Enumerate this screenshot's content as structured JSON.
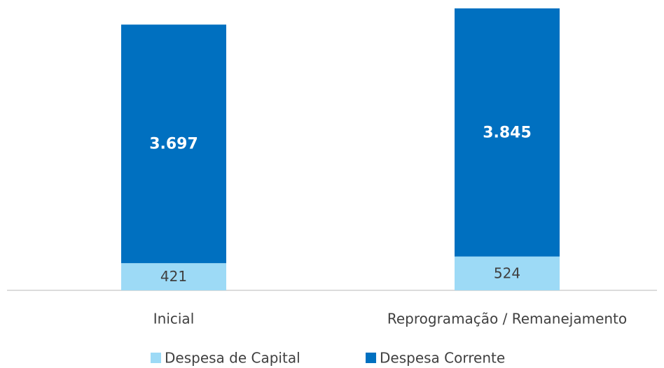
{
  "chart_data": {
    "type": "stacked_bar",
    "categories": [
      "Inicial",
      "Reprogramação / Remanejamento"
    ],
    "series": [
      {
        "name": "Despesa de Capital",
        "color": "#9ddaf6",
        "values": [
          421,
          524
        ]
      },
      {
        "name": "Despesa Corrente",
        "color": "#0070c0",
        "values": [
          3697,
          3845
        ],
        "value_labels": [
          "3.697",
          "3.845"
        ]
      }
    ]
  }
}
